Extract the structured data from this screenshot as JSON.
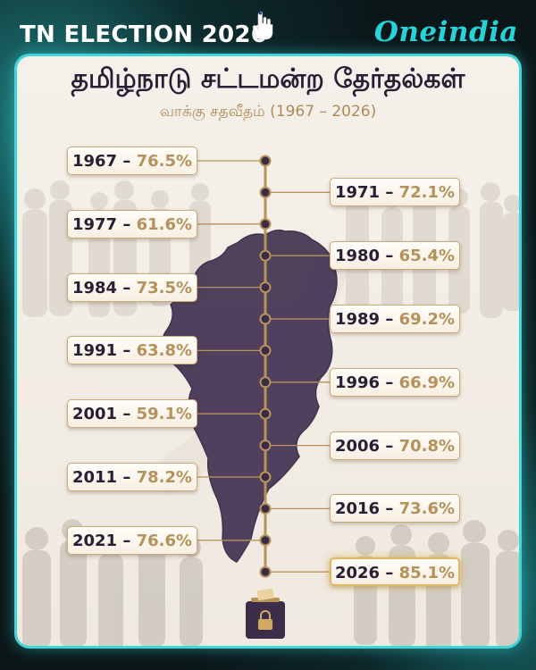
{
  "header": {
    "left_title": "TN ELECTION 2026",
    "brand": "Oneindia"
  },
  "icons": {
    "voting_hand": "voting-hand-icon",
    "ballot_box": "ballot-box-icon"
  },
  "colors": {
    "accent_teal": "#3fd6d9",
    "map_purple": "#4a3a58",
    "year_text": "#2a1e36",
    "value_gold": "#b5915c"
  },
  "chart_data": {
    "type": "timeline",
    "title": "தமிழ்நாடு சட்டமன்ற தேர்தல்கள்",
    "subtitle": "வாக்கு சதவீதம் (1967 – 2026)",
    "unit": "%",
    "separator": "–",
    "points": [
      {
        "year": "1967",
        "value": "76.5%",
        "side": "left"
      },
      {
        "year": "1971",
        "value": "72.1%",
        "side": "right"
      },
      {
        "year": "1977",
        "value": "61.6%",
        "side": "left"
      },
      {
        "year": "1980",
        "value": "65.4%",
        "side": "right"
      },
      {
        "year": "1984",
        "value": "73.5%",
        "side": "left"
      },
      {
        "year": "1989",
        "value": "69.2%",
        "side": "right"
      },
      {
        "year": "1991",
        "value": "63.8%",
        "side": "left"
      },
      {
        "year": "1996",
        "value": "66.9%",
        "side": "right"
      },
      {
        "year": "2001",
        "value": "59.1%",
        "side": "left"
      },
      {
        "year": "2006",
        "value": "70.8%",
        "side": "right"
      },
      {
        "year": "2011",
        "value": "78.2%",
        "side": "left"
      },
      {
        "year": "2016",
        "value": "73.6%",
        "side": "right"
      },
      {
        "year": "2021",
        "value": "76.6%",
        "side": "left"
      },
      {
        "year": "2026",
        "value": "85.1%",
        "side": "right",
        "highlight": true
      }
    ]
  }
}
